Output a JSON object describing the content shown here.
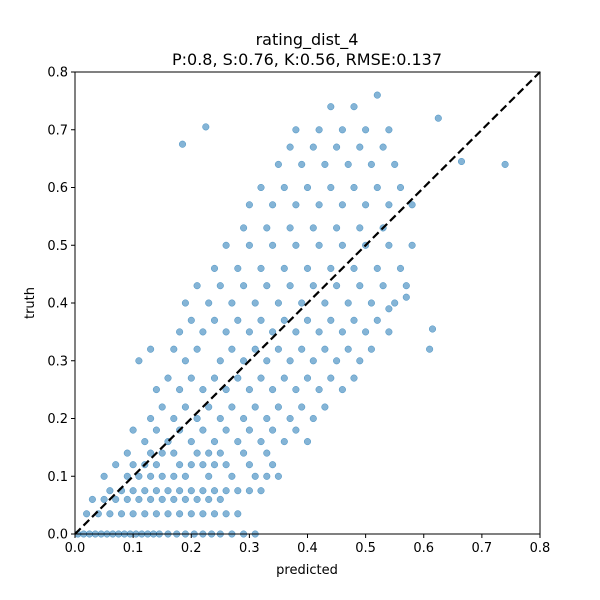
{
  "chart_data": {
    "type": "scatter",
    "title": "rating_dist_4",
    "subtitle": "P:0.8, S:0.76, K:0.56, RMSE:0.137",
    "xlabel": "predicted",
    "ylabel": "truth",
    "xlim": [
      0,
      0.8
    ],
    "ylim": [
      0,
      0.8
    ],
    "xticks": [
      "0.0",
      "0.1",
      "0.2",
      "0.3",
      "0.4",
      "0.5",
      "0.6",
      "0.7",
      "0.8"
    ],
    "yticks": [
      "0.0",
      "0.1",
      "0.2",
      "0.3",
      "0.4",
      "0.5",
      "0.6",
      "0.7",
      "0.8"
    ],
    "grid": false,
    "reference_line": {
      "style": "dashed",
      "color": "#000000",
      "from": [
        0,
        0
      ],
      "to": [
        0.8,
        0.8
      ]
    },
    "marker_color": "#1f77b4",
    "marker_opacity": 0.55,
    "series": [
      {
        "x": [
          0.005,
          0.015,
          0.025,
          0.035,
          0.045,
          0.055,
          0.065,
          0.075,
          0.085,
          0.095,
          0.105,
          0.115,
          0.125,
          0.135,
          0.145,
          0.16,
          0.175,
          0.19,
          0.205,
          0.22,
          0.235,
          0.25,
          0.27,
          0.29,
          0.31,
          0.02,
          0.04,
          0.06,
          0.08,
          0.1,
          0.12,
          0.14,
          0.16,
          0.18,
          0.2,
          0.22,
          0.24,
          0.26,
          0.28,
          0.03,
          0.05,
          0.07,
          0.09,
          0.11,
          0.13,
          0.15,
          0.17,
          0.19,
          0.21,
          0.23,
          0.25,
          0.06,
          0.08,
          0.1,
          0.12,
          0.14,
          0.16,
          0.18,
          0.2,
          0.22,
          0.24,
          0.26,
          0.28,
          0.3,
          0.32,
          0.05,
          0.09,
          0.11,
          0.13,
          0.15,
          0.17,
          0.19,
          0.23,
          0.27,
          0.31,
          0.33,
          0.35,
          0.07,
          0.1,
          0.12,
          0.14,
          0.18,
          0.2,
          0.22,
          0.24,
          0.26,
          0.3,
          0.34,
          0.09,
          0.13,
          0.15,
          0.17,
          0.21,
          0.23,
          0.25,
          0.29,
          0.33,
          0.12,
          0.16,
          0.2,
          0.24,
          0.28,
          0.32,
          0.36,
          0.4,
          0.1,
          0.14,
          0.18,
          0.22,
          0.26,
          0.3,
          0.34,
          0.38,
          0.13,
          0.17,
          0.21,
          0.25,
          0.29,
          0.33,
          0.37,
          0.41,
          0.15,
          0.19,
          0.23,
          0.27,
          0.31,
          0.35,
          0.39,
          0.43,
          0.14,
          0.18,
          0.22,
          0.26,
          0.3,
          0.34,
          0.38,
          0.42,
          0.46,
          0.16,
          0.2,
          0.24,
          0.28,
          0.32,
          0.36,
          0.4,
          0.44,
          0.48,
          0.11,
          0.19,
          0.25,
          0.29,
          0.33,
          0.37,
          0.41,
          0.45,
          0.49,
          0.13,
          0.17,
          0.21,
          0.27,
          0.31,
          0.35,
          0.39,
          0.43,
          0.47,
          0.51,
          0.18,
          0.22,
          0.26,
          0.3,
          0.34,
          0.38,
          0.42,
          0.46,
          0.5,
          0.54,
          0.2,
          0.24,
          0.28,
          0.32,
          0.36,
          0.4,
          0.44,
          0.48,
          0.52,
          0.19,
          0.23,
          0.27,
          0.31,
          0.35,
          0.39,
          0.43,
          0.47,
          0.51,
          0.55,
          0.21,
          0.25,
          0.29,
          0.33,
          0.37,
          0.41,
          0.45,
          0.49,
          0.53,
          0.57,
          0.24,
          0.28,
          0.32,
          0.36,
          0.4,
          0.44,
          0.48,
          0.52,
          0.56,
          0.26,
          0.3,
          0.34,
          0.38,
          0.42,
          0.46,
          0.5,
          0.54,
          0.58,
          0.29,
          0.33,
          0.37,
          0.41,
          0.45,
          0.49,
          0.53,
          0.3,
          0.34,
          0.38,
          0.42,
          0.46,
          0.5,
          0.54,
          0.58,
          0.32,
          0.36,
          0.4,
          0.44,
          0.48,
          0.52,
          0.56,
          0.35,
          0.39,
          0.43,
          0.47,
          0.51,
          0.55,
          0.37,
          0.41,
          0.45,
          0.49,
          0.53,
          0.38,
          0.42,
          0.46,
          0.5,
          0.54,
          0.44,
          0.48,
          0.52,
          0.185,
          0.225,
          0.625,
          0.665,
          0.74,
          0.615,
          0.61,
          0.54,
          0.57
        ],
        "y": [
          0.0,
          0.0,
          0.0,
          0.0,
          0.0,
          0.0,
          0.0,
          0.0,
          0.0,
          0.0,
          0.0,
          0.0,
          0.0,
          0.0,
          0.0,
          0.0,
          0.0,
          0.0,
          0.0,
          0.0,
          0.0,
          0.0,
          0.0,
          0.0,
          0.0,
          0.035,
          0.035,
          0.035,
          0.035,
          0.035,
          0.035,
          0.035,
          0.035,
          0.035,
          0.035,
          0.035,
          0.035,
          0.035,
          0.035,
          0.06,
          0.06,
          0.06,
          0.06,
          0.06,
          0.06,
          0.06,
          0.06,
          0.06,
          0.06,
          0.06,
          0.06,
          0.075,
          0.075,
          0.075,
          0.075,
          0.075,
          0.075,
          0.075,
          0.075,
          0.075,
          0.075,
          0.075,
          0.075,
          0.075,
          0.075,
          0.1,
          0.1,
          0.1,
          0.1,
          0.1,
          0.1,
          0.1,
          0.1,
          0.1,
          0.1,
          0.1,
          0.1,
          0.12,
          0.12,
          0.12,
          0.12,
          0.12,
          0.12,
          0.12,
          0.12,
          0.12,
          0.12,
          0.12,
          0.14,
          0.14,
          0.14,
          0.14,
          0.14,
          0.14,
          0.14,
          0.14,
          0.14,
          0.16,
          0.16,
          0.16,
          0.16,
          0.16,
          0.16,
          0.16,
          0.16,
          0.18,
          0.18,
          0.18,
          0.18,
          0.18,
          0.18,
          0.18,
          0.18,
          0.2,
          0.2,
          0.2,
          0.2,
          0.2,
          0.2,
          0.2,
          0.2,
          0.22,
          0.22,
          0.22,
          0.22,
          0.22,
          0.22,
          0.22,
          0.22,
          0.25,
          0.25,
          0.25,
          0.25,
          0.25,
          0.25,
          0.25,
          0.25,
          0.25,
          0.27,
          0.27,
          0.27,
          0.27,
          0.27,
          0.27,
          0.27,
          0.27,
          0.27,
          0.3,
          0.3,
          0.3,
          0.3,
          0.3,
          0.3,
          0.3,
          0.3,
          0.3,
          0.32,
          0.32,
          0.32,
          0.32,
          0.32,
          0.32,
          0.32,
          0.32,
          0.32,
          0.32,
          0.35,
          0.35,
          0.35,
          0.35,
          0.35,
          0.35,
          0.35,
          0.35,
          0.35,
          0.35,
          0.37,
          0.37,
          0.37,
          0.37,
          0.37,
          0.37,
          0.37,
          0.37,
          0.37,
          0.4,
          0.4,
          0.4,
          0.4,
          0.4,
          0.4,
          0.4,
          0.4,
          0.4,
          0.4,
          0.43,
          0.43,
          0.43,
          0.43,
          0.43,
          0.43,
          0.43,
          0.43,
          0.43,
          0.43,
          0.46,
          0.46,
          0.46,
          0.46,
          0.46,
          0.46,
          0.46,
          0.46,
          0.46,
          0.5,
          0.5,
          0.5,
          0.5,
          0.5,
          0.5,
          0.5,
          0.5,
          0.5,
          0.53,
          0.53,
          0.53,
          0.53,
          0.53,
          0.53,
          0.53,
          0.57,
          0.57,
          0.57,
          0.57,
          0.57,
          0.57,
          0.57,
          0.57,
          0.6,
          0.6,
          0.6,
          0.6,
          0.6,
          0.6,
          0.6,
          0.64,
          0.64,
          0.64,
          0.64,
          0.64,
          0.64,
          0.67,
          0.67,
          0.67,
          0.67,
          0.67,
          0.7,
          0.7,
          0.7,
          0.7,
          0.7,
          0.74,
          0.74,
          0.76,
          0.675,
          0.705,
          0.72,
          0.645,
          0.64,
          0.355,
          0.32,
          0.39,
          0.41
        ]
      }
    ]
  }
}
